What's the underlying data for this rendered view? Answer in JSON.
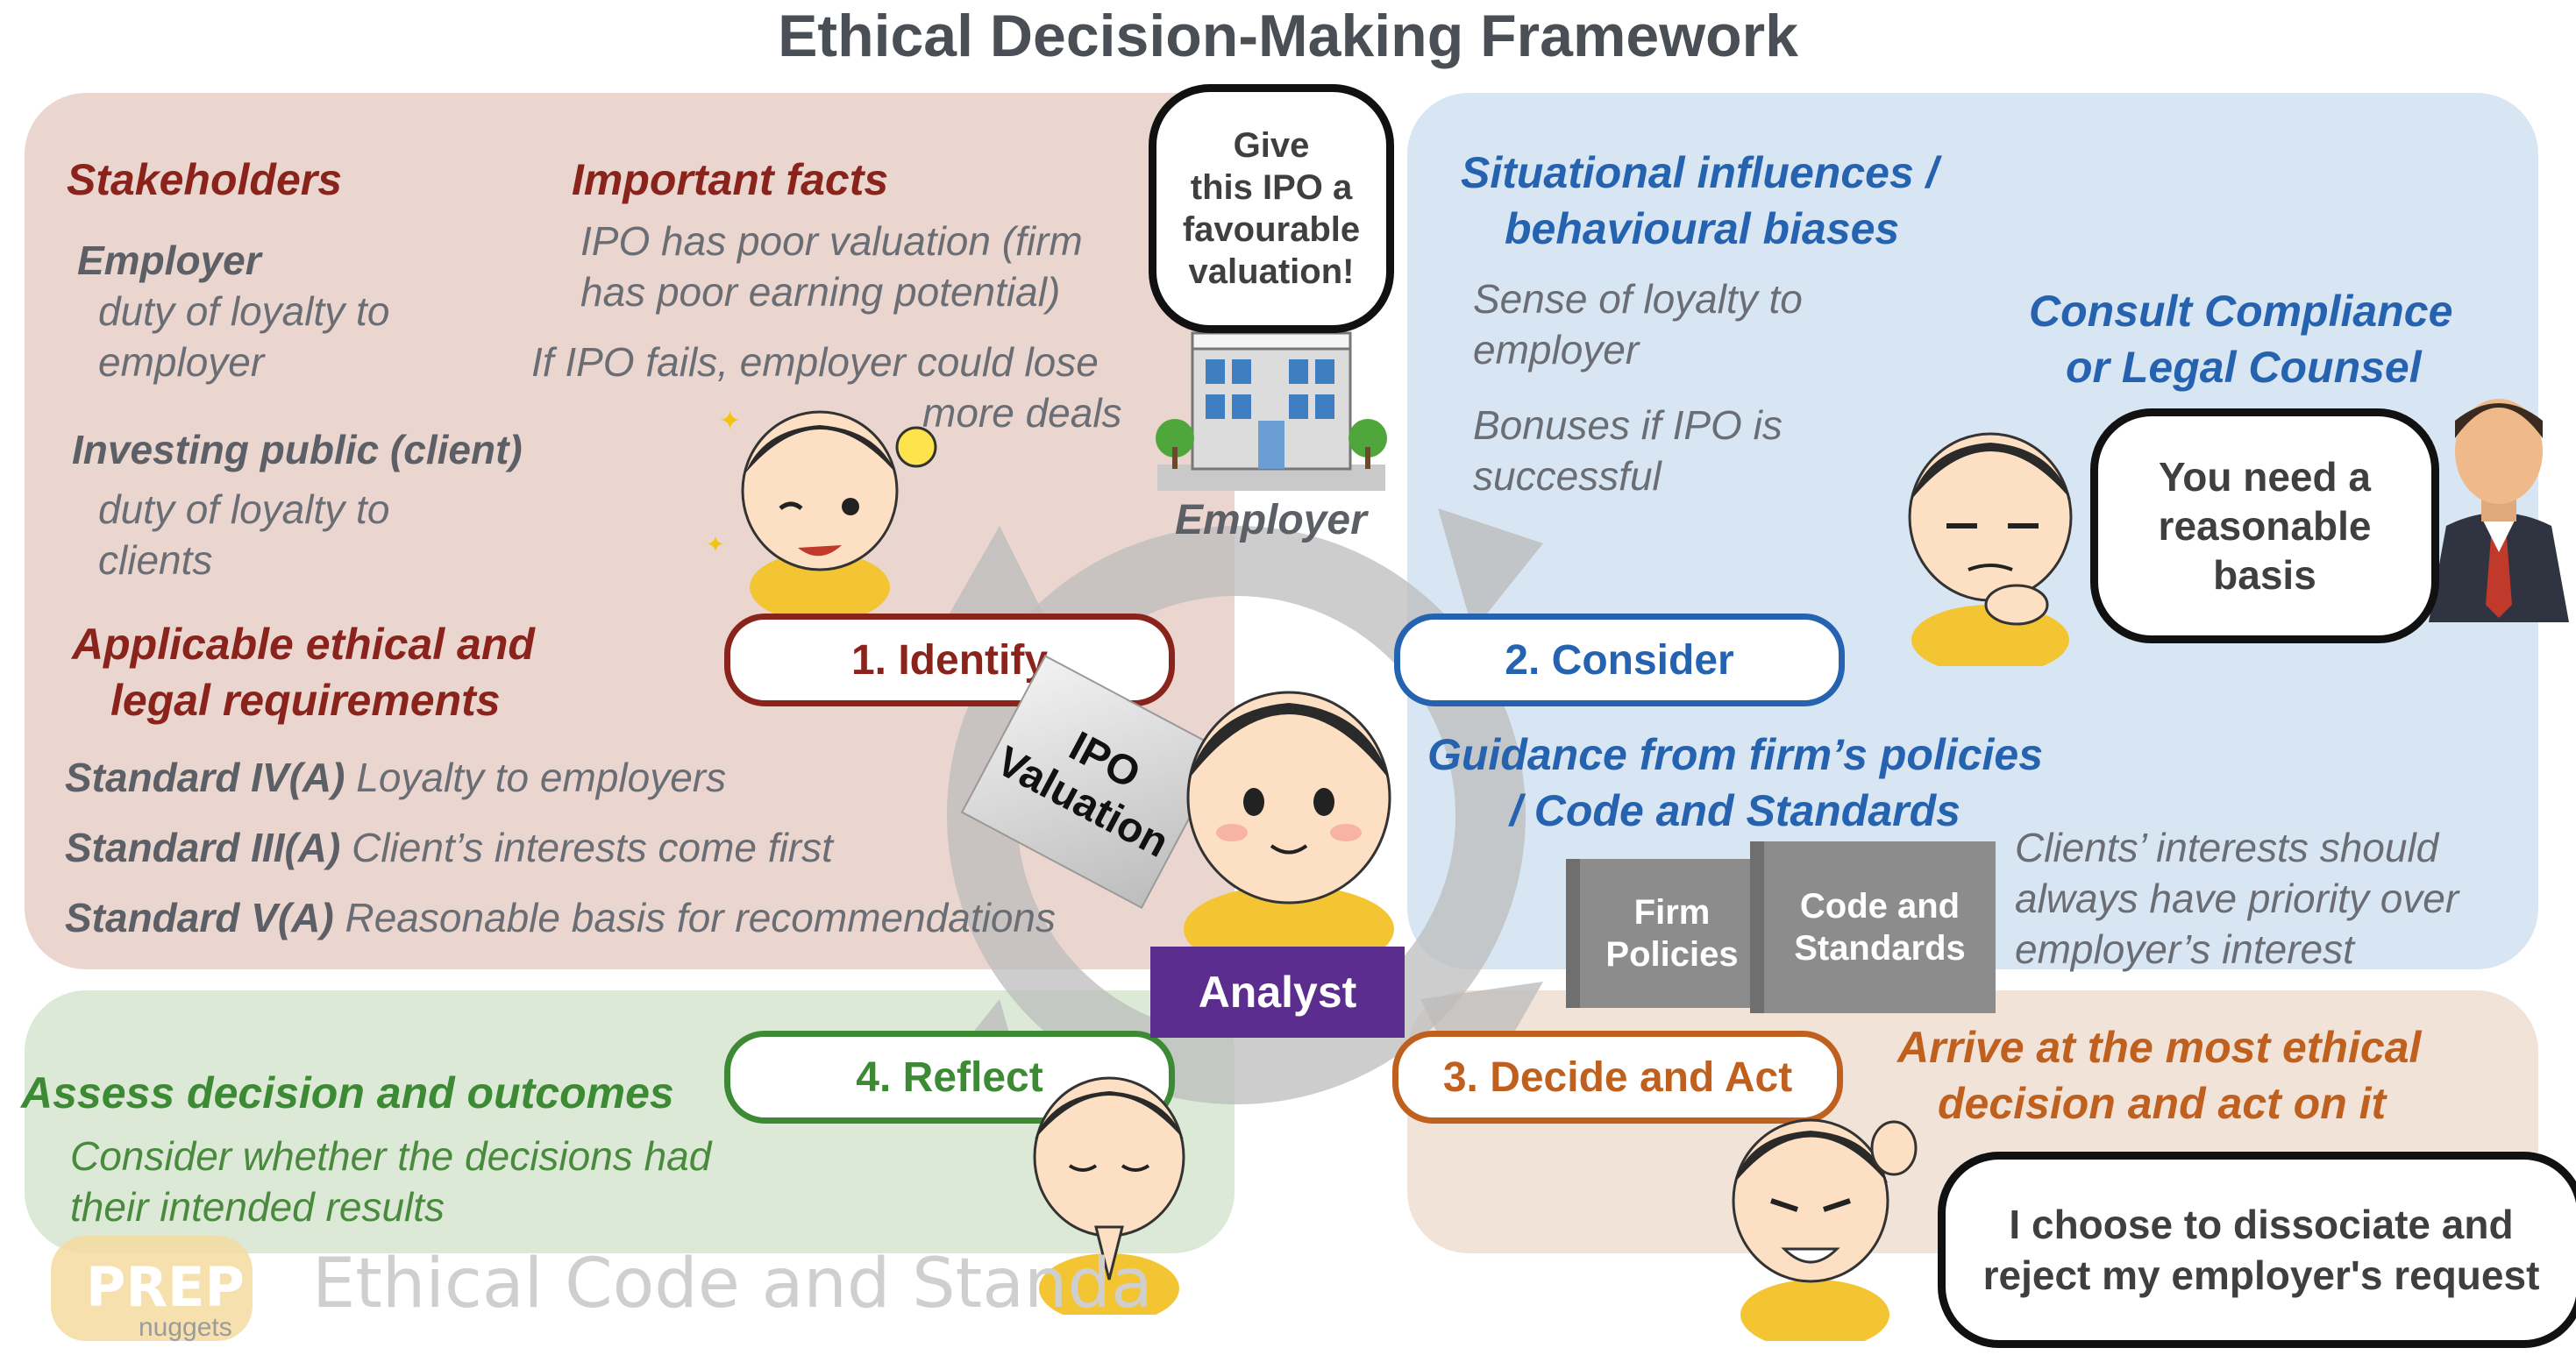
{
  "title": "Ethical Decision-Making Framework",
  "colors": {
    "identify": "#8a231c",
    "consider": "#2563b0",
    "decide": "#c0601f",
    "reflect": "#3c8a33",
    "analyst": "#5b2d8e"
  },
  "identify": {
    "stakeholders_heading": "Stakeholders",
    "employer_label": "Employer",
    "employer_duty_1": "duty of loyalty to",
    "employer_duty_2": "employer",
    "public_label": "Investing public (client)",
    "public_duty_1": "duty of loyalty to",
    "public_duty_2": "clients",
    "facts_heading": "Important facts",
    "fact1_line1": "IPO has poor valuation (firm",
    "fact1_line2": "has poor earning potential)",
    "fact2_line1": "If IPO fails, employer could lose",
    "fact2_line2": "more deals",
    "requirements_heading_1": "Applicable ethical and",
    "requirements_heading_2": "legal requirements",
    "standards": [
      {
        "code": "Standard IV(A)",
        "text": "Loyalty to employers"
      },
      {
        "code": "Standard III(A)",
        "text": "Client’s interests come first"
      },
      {
        "code": "Standard V(A)",
        "text": "Reasonable basis for recommendations"
      }
    ]
  },
  "employer_bubble": [
    "Give",
    "this IPO a",
    "favourable",
    "valuation!"
  ],
  "employer_label": "Employer",
  "consider": {
    "influences_heading_1": "Situational influences /",
    "influences_heading_2": "behavioural biases",
    "influence1_line1": "Sense of loyalty to",
    "influence1_line2": "employer",
    "influence2_line1": "Bonuses if IPO is",
    "influence2_line2": "successful",
    "consult_heading_1": "Consult Compliance",
    "consult_heading_2": "or Legal Counsel",
    "counsel_bubble": [
      "You need a",
      "reasonable",
      "basis"
    ],
    "guidance_heading_1": "Guidance from firm’s policies",
    "guidance_heading_2": "/ Code and Standards",
    "guidance_text_1": "Clients’ interests should",
    "guidance_text_2": "always have priority over",
    "guidance_text_3": "employer’s interest",
    "book1": [
      "Firm",
      "Policies"
    ],
    "book2": [
      "Code and",
      "Standards"
    ]
  },
  "steps": {
    "identify": "1. Identify",
    "consider": "2. Consider",
    "decide": "3. Decide and Act",
    "reflect": "4. Reflect"
  },
  "analyst_label": "Analyst",
  "ipo_card": [
    "IPO",
    "Valuation"
  ],
  "decide": {
    "heading_1": "Arrive at the most ethical",
    "heading_2": "decision and act on it",
    "bubble": [
      "I choose to dissociate and",
      "reject my employer's request"
    ]
  },
  "reflect": {
    "heading": "Assess decision and outcomes",
    "text_1": "Consider whether the decisions had",
    "text_2": "their intended results"
  },
  "watermark": {
    "logo": "PREP",
    "logo_sub": "nuggets",
    "text": "Ethical Code and Standa"
  }
}
